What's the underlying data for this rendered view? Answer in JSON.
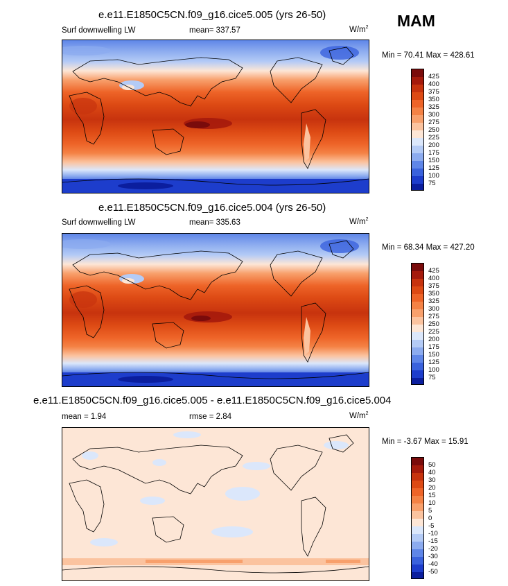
{
  "season": "MAM",
  "panels": [
    {
      "title": "e.e11.E1850C5CN.f09_g16.cice5.005 (yrs 26-50)",
      "left_label": "Surf downwelling LW",
      "center_label": "mean= 337.57",
      "units": "W/m",
      "units_exp": "2",
      "minmax": "Min =  70.41 Max = 428.61"
    },
    {
      "title": "e.e11.E1850C5CN.f09_g16.cice5.004 (yrs 26-50)",
      "left_label": "Surf downwelling LW",
      "center_label": "mean= 335.63",
      "units": "W/m",
      "units_exp": "2",
      "minmax": "Min =  68.34 Max = 427.20"
    },
    {
      "title": "e.e11.E1850C5CN.f09_g16.cice5.005 - e.e11.E1850C5CN.f09_g16.cice5.004",
      "left_label": "mean =   1.94",
      "center_label": "rmse =   2.84",
      "units": "W/m",
      "units_exp": "2",
      "minmax": "Min =  -3.67 Max =  15.91"
    }
  ],
  "colorbars": {
    "abs": {
      "ticks": [
        "425",
        "400",
        "375",
        "350",
        "325",
        "300",
        "275",
        "250",
        "225",
        "200",
        "175",
        "150",
        "125",
        "100",
        "75"
      ],
      "colors": [
        "#7a0b0b",
        "#a51a0c",
        "#c7330e",
        "#dd4a14",
        "#ee6428",
        "#f48245",
        "#f8a06c",
        "#fbc39f",
        "#fde6d6",
        "#dbe7fb",
        "#b4cbf6",
        "#8cabef",
        "#5f86e8",
        "#3a62dd",
        "#1d3dcc",
        "#0b1e9e"
      ]
    },
    "diff": {
      "ticks": [
        "50",
        "40",
        "30",
        "20",
        "15",
        "10",
        "5",
        "0",
        "-5",
        "-10",
        "-15",
        "-20",
        "-30",
        "-40",
        "-50"
      ],
      "colors": [
        "#7a0b0b",
        "#a51a0c",
        "#c7330e",
        "#dd4a14",
        "#ee6428",
        "#f48245",
        "#f8a06c",
        "#fbc39f",
        "#fde6d6",
        "#dbe7fb",
        "#b4cbf6",
        "#8cabef",
        "#5f86e8",
        "#3a62dd",
        "#1d3dcc",
        "#0b1e9e"
      ]
    }
  },
  "chart_data": [
    {
      "type": "heatmap",
      "title": "e.e11.E1850C5CN.f09_g16.cice5.005 (yrs 26-50)",
      "variable": "Surf downwelling LW",
      "units": "W/m2",
      "mean": 337.57,
      "min": 70.41,
      "max": 428.61,
      "contour_levels": [
        75,
        100,
        125,
        150,
        175,
        200,
        225,
        250,
        275,
        300,
        325,
        350,
        375,
        400,
        425
      ],
      "zonal_profile_south_to_north": [
        {
          "lat": -90,
          "value": 80
        },
        {
          "lat": -75,
          "value": 130
        },
        {
          "lat": -60,
          "value": 250
        },
        {
          "lat": -45,
          "value": 310
        },
        {
          "lat": -30,
          "value": 350
        },
        {
          "lat": -15,
          "value": 390
        },
        {
          "lat": 0,
          "value": 410
        },
        {
          "lat": 15,
          "value": 400
        },
        {
          "lat": 30,
          "value": 360
        },
        {
          "lat": 45,
          "value": 300
        },
        {
          "lat": 60,
          "value": 260
        },
        {
          "lat": 75,
          "value": 190
        },
        {
          "lat": 90,
          "value": 175
        }
      ]
    },
    {
      "type": "heatmap",
      "title": "e.e11.E1850C5CN.f09_g16.cice5.004 (yrs 26-50)",
      "variable": "Surf downwelling LW",
      "units": "W/m2",
      "mean": 335.63,
      "min": 68.34,
      "max": 427.2,
      "contour_levels": [
        75,
        100,
        125,
        150,
        175,
        200,
        225,
        250,
        275,
        300,
        325,
        350,
        375,
        400,
        425
      ],
      "zonal_profile_south_to_north": [
        {
          "lat": -90,
          "value": 78
        },
        {
          "lat": -75,
          "value": 128
        },
        {
          "lat": -60,
          "value": 248
        },
        {
          "lat": -45,
          "value": 308
        },
        {
          "lat": -30,
          "value": 348
        },
        {
          "lat": -15,
          "value": 388
        },
        {
          "lat": 0,
          "value": 408
        },
        {
          "lat": 15,
          "value": 398
        },
        {
          "lat": 30,
          "value": 358
        },
        {
          "lat": 45,
          "value": 298
        },
        {
          "lat": 60,
          "value": 255
        },
        {
          "lat": 75,
          "value": 185
        },
        {
          "lat": 90,
          "value": 170
        }
      ]
    },
    {
      "type": "heatmap",
      "title": "e.e11.E1850C5CN.f09_g16.cice5.005 - e.e11.E1850C5CN.f09_g16.cice5.004",
      "units": "W/m2",
      "mean": 1.94,
      "rmse": 2.84,
      "min": -3.67,
      "max": 15.91,
      "contour_levels": [
        -50,
        -40,
        -30,
        -20,
        -15,
        -10,
        -5,
        0,
        5,
        10,
        15,
        20,
        30,
        40,
        50
      ]
    }
  ]
}
